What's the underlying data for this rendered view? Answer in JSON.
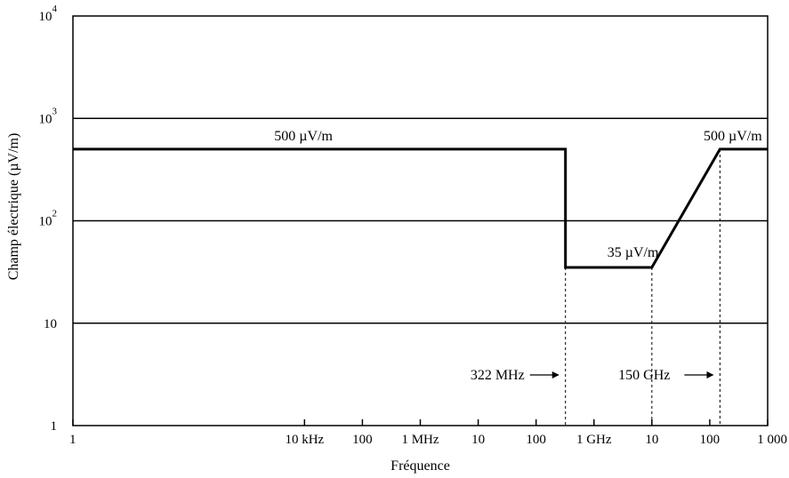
{
  "chart_data": {
    "type": "line",
    "title": "",
    "xlabel": "Fréquence",
    "ylabel": "Champ électrique (µV/m)",
    "x_scale": "log",
    "y_scale": "log",
    "x_unit": "Hz",
    "y_unit": "µV/m",
    "xlim": [
      1,
      1000000000000.0
    ],
    "ylim": [
      1,
      10000
    ],
    "grid": "horizontal",
    "x_ticks": [
      {
        "value": 1,
        "label": "1"
      },
      {
        "value": 10000,
        "label": "10 kHz"
      },
      {
        "value": 100000,
        "label": "100"
      },
      {
        "value": 1000000,
        "label": "1 MHz"
      },
      {
        "value": 10000000,
        "label": "10"
      },
      {
        "value": 100000000,
        "label": "100"
      },
      {
        "value": 1000000000,
        "label": "1 GHz"
      },
      {
        "value": 10000000000,
        "label": "10"
      },
      {
        "value": 100000000000,
        "label": "100"
      },
      {
        "value": 1000000000000,
        "label": "1 000"
      }
    ],
    "y_ticks": [
      {
        "value": 1,
        "label": "1",
        "base": "1",
        "sup": ""
      },
      {
        "value": 10,
        "label": "10",
        "base": "10",
        "sup": ""
      },
      {
        "value": 100,
        "label": "10^2",
        "base": "10",
        "sup": "2"
      },
      {
        "value": 1000,
        "label": "10^3",
        "base": "10",
        "sup": "3"
      },
      {
        "value": 10000,
        "label": "10^4",
        "base": "10",
        "sup": "4"
      }
    ],
    "series": [
      {
        "points": [
          [
            1,
            500
          ],
          [
            322000000,
            500
          ],
          [
            322000000,
            35
          ],
          [
            10000000000,
            35
          ],
          [
            150000000000,
            500
          ],
          [
            1000000000000,
            500
          ]
        ]
      }
    ],
    "annotations": {
      "level_left": {
        "text": "500 µV/m",
        "x": 3000,
        "y": 500
      },
      "level_mid": {
        "text": "35 µV/m",
        "x": 1700000000,
        "y": 35
      },
      "level_right": {
        "text": "500 µV/m",
        "x": 250000000000,
        "y": 500
      },
      "freq_322": {
        "text": "322 MHz",
        "x": 322000000
      },
      "freq_150": {
        "text": "150 GHz",
        "x": 150000000000
      }
    }
  }
}
